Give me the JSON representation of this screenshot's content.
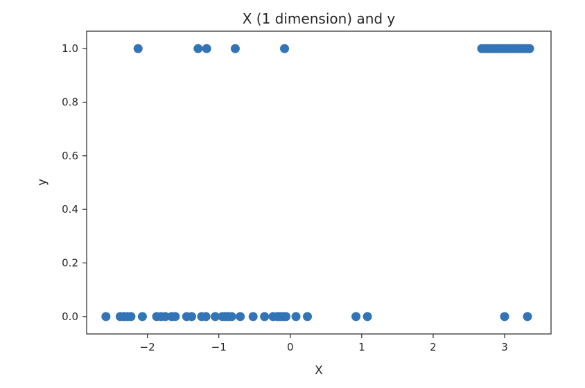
{
  "chart_data": {
    "type": "scatter",
    "title": "X (1 dimension) and y",
    "xlabel": "X",
    "ylabel": "y",
    "xlim": [
      -2.85,
      3.65
    ],
    "ylim": [
      -0.065,
      1.065
    ],
    "grid": false,
    "marker_color": "#3274b5",
    "x_ticks": [
      -2,
      -1,
      0,
      1,
      2,
      3
    ],
    "x_tick_labels": [
      "−2",
      "−1",
      "0",
      "1",
      "2",
      "3"
    ],
    "y_ticks": [
      0.0,
      0.2,
      0.4,
      0.6,
      0.8,
      1.0
    ],
    "y_tick_labels": [
      "0.0",
      "0.2",
      "0.4",
      "0.6",
      "0.8",
      "1.0"
    ],
    "points": [
      {
        "x": -2.13,
        "y": 1
      },
      {
        "x": -1.29,
        "y": 1
      },
      {
        "x": -1.17,
        "y": 1
      },
      {
        "x": -0.77,
        "y": 1
      },
      {
        "x": -0.08,
        "y": 1
      },
      {
        "x": 2.68,
        "y": 1
      },
      {
        "x": 2.72,
        "y": 1
      },
      {
        "x": 2.76,
        "y": 1
      },
      {
        "x": 2.8,
        "y": 1
      },
      {
        "x": 2.84,
        "y": 1
      },
      {
        "x": 2.88,
        "y": 1
      },
      {
        "x": 2.92,
        "y": 1
      },
      {
        "x": 2.96,
        "y": 1
      },
      {
        "x": 3.0,
        "y": 1
      },
      {
        "x": 3.04,
        "y": 1
      },
      {
        "x": 3.08,
        "y": 1
      },
      {
        "x": 3.12,
        "y": 1
      },
      {
        "x": 3.16,
        "y": 1
      },
      {
        "x": 3.2,
        "y": 1
      },
      {
        "x": 3.24,
        "y": 1
      },
      {
        "x": 3.28,
        "y": 1
      },
      {
        "x": 3.32,
        "y": 1
      },
      {
        "x": 3.35,
        "y": 1
      },
      {
        "x": -2.58,
        "y": 0
      },
      {
        "x": -2.38,
        "y": 0
      },
      {
        "x": -2.33,
        "y": 0
      },
      {
        "x": -2.28,
        "y": 0
      },
      {
        "x": -2.23,
        "y": 0
      },
      {
        "x": -2.07,
        "y": 0
      },
      {
        "x": -1.87,
        "y": 0
      },
      {
        "x": -1.81,
        "y": 0
      },
      {
        "x": -1.75,
        "y": 0
      },
      {
        "x": -1.66,
        "y": 0
      },
      {
        "x": -1.61,
        "y": 0
      },
      {
        "x": -1.45,
        "y": 0
      },
      {
        "x": -1.38,
        "y": 0
      },
      {
        "x": -1.24,
        "y": 0
      },
      {
        "x": -1.18,
        "y": 0
      },
      {
        "x": -1.05,
        "y": 0
      },
      {
        "x": -0.95,
        "y": 0
      },
      {
        "x": -0.91,
        "y": 0
      },
      {
        "x": -0.87,
        "y": 0
      },
      {
        "x": -0.82,
        "y": 0
      },
      {
        "x": -0.7,
        "y": 0
      },
      {
        "x": -0.52,
        "y": 0
      },
      {
        "x": -0.36,
        "y": 0
      },
      {
        "x": -0.24,
        "y": 0
      },
      {
        "x": -0.18,
        "y": 0
      },
      {
        "x": -0.14,
        "y": 0
      },
      {
        "x": -0.1,
        "y": 0
      },
      {
        "x": -0.06,
        "y": 0
      },
      {
        "x": 0.08,
        "y": 0
      },
      {
        "x": 0.24,
        "y": 0
      },
      {
        "x": 0.92,
        "y": 0
      },
      {
        "x": 1.08,
        "y": 0
      },
      {
        "x": 3.0,
        "y": 0
      },
      {
        "x": 3.32,
        "y": 0
      }
    ]
  }
}
